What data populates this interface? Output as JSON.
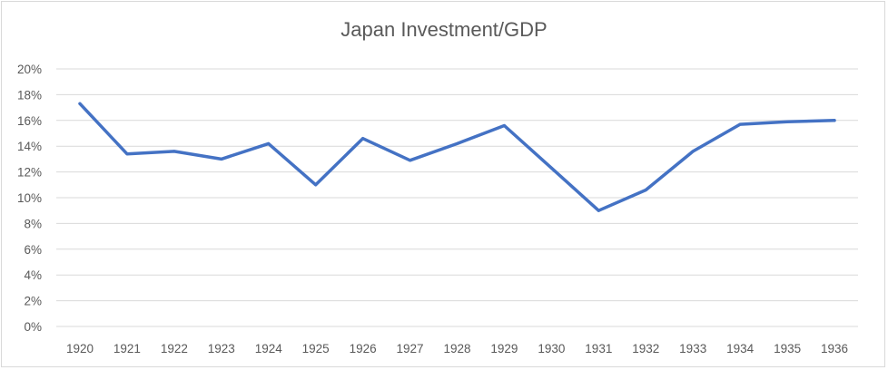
{
  "chart_data": {
    "type": "line",
    "title": "Japan Investment/GDP",
    "xlabel": "",
    "ylabel": "",
    "categories": [
      "1920",
      "1921",
      "1922",
      "1923",
      "1924",
      "1925",
      "1926",
      "1927",
      "1928",
      "1929",
      "1930",
      "1931",
      "1932",
      "1933",
      "1934",
      "1935",
      "1936"
    ],
    "series": [
      {
        "values": [
          17.3,
          13.4,
          13.6,
          13.0,
          14.2,
          11.0,
          14.6,
          12.9,
          14.2,
          15.6,
          12.3,
          9.0,
          10.6,
          13.6,
          15.7,
          15.9,
          16.0
        ],
        "color": "#4472c4"
      }
    ],
    "ylim": [
      0,
      20
    ],
    "y_ticks": [
      "0%",
      "2%",
      "4%",
      "6%",
      "8%",
      "10%",
      "12%",
      "14%",
      "16%",
      "18%",
      "20%"
    ],
    "grid": true,
    "legend": "none",
    "colors": {
      "gridline": "#d9d9d9",
      "text": "#595959",
      "line": "#4472c4"
    }
  }
}
